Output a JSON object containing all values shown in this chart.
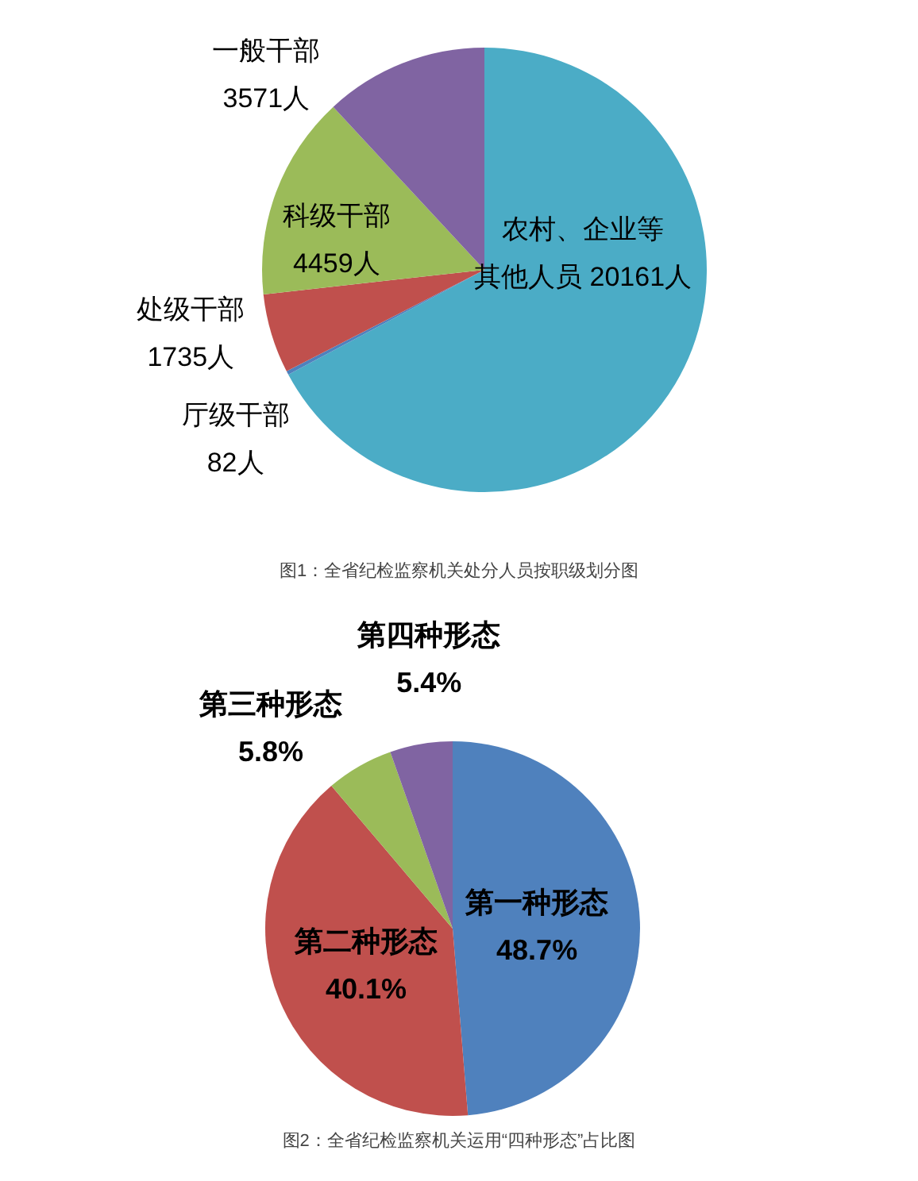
{
  "chart_data": [
    {
      "type": "pie",
      "categories": [
        "农村、企业等其他人员",
        "厅级干部",
        "处级干部",
        "科级干部",
        "一般干部"
      ],
      "values": [
        20161,
        82,
        1735,
        4459,
        3571
      ],
      "value_labels": [
        "20161人",
        "82人",
        "1735人",
        "4459人",
        "3571人"
      ],
      "colors": [
        "#4bacc6",
        "#4f81bd",
        "#c0504d",
        "#9bbb59",
        "#8064a2"
      ],
      "annotations": [
        "图1：全省纪检监察机关处分人员按职级划分图"
      ]
    },
    {
      "type": "pie",
      "categories": [
        "第一种形态",
        "第二种形态",
        "第三种形态",
        "第四种形态"
      ],
      "values": [
        48.7,
        40.1,
        5.8,
        5.4
      ],
      "value_labels": [
        "48.7%",
        "40.1%",
        "5.8%",
        "5.4%"
      ],
      "colors": [
        "#4f81bd",
        "#c0504d",
        "#9bbb59",
        "#8064a2"
      ],
      "annotations": [
        "图2：全省纪检监察机关运用“四种形态”占比图"
      ]
    }
  ]
}
